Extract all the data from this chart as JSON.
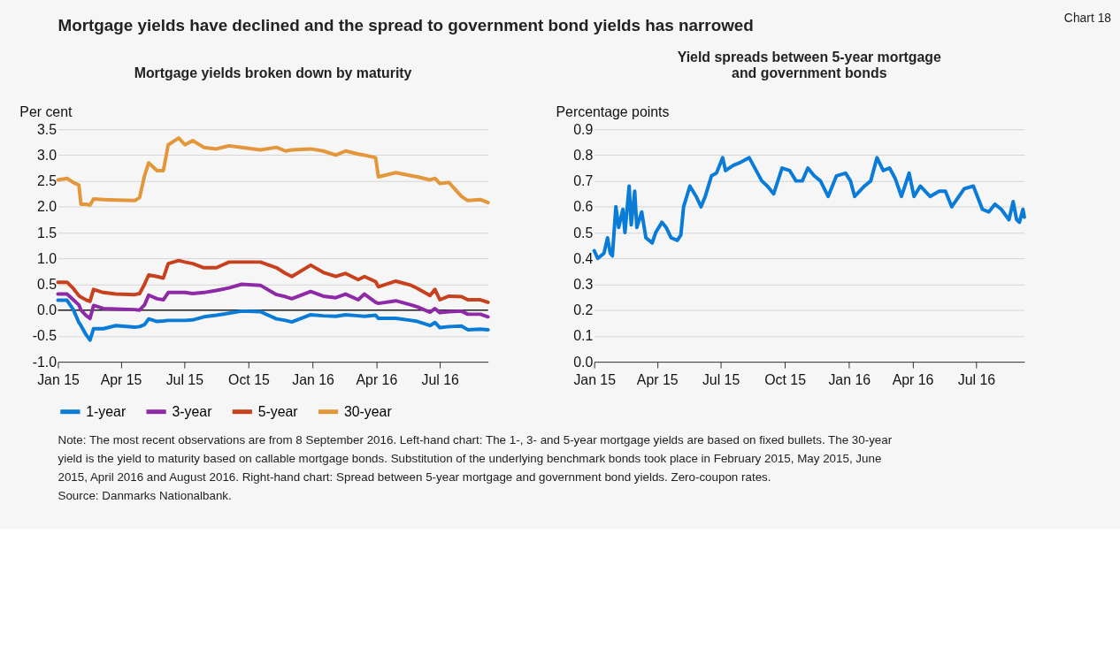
{
  "chart_data": [
    {
      "type": "line",
      "title": "Mortgage yields broken down by maturity",
      "ylabel": "Per cent",
      "annotations": [
        "Mortgage yields have declined and the spread to government bond yields has narrowed",
        "Chart 18",
        "Note: The most recent observations are from 8 September 2016. Left-hand chart: The 1-, 3- and 5-year mortgage yields are based on fixed bullets. The 30-year yield is the yield to maturity based on callable mortgage bonds. Substitution of the underlying benchmark bonds took place in February 2015, May 2015, June 2015, April 2016 and August 2016. Right-hand chart: Spread between 5-year mortgage and government bond yields. Zero-coupon rates.",
        "Source: Danmarks Nationalbank."
      ],
      "x": [
        "2015-01-01",
        "2015-01-14",
        "2015-01-23",
        "2015-01-31",
        "2015-02-03",
        "2015-02-10",
        "2015-02-16",
        "2015-02-21",
        "2015-03-07",
        "2015-03-25",
        "2015-04-21",
        "2015-04-28",
        "2015-05-05",
        "2015-05-11",
        "2015-05-23",
        "2015-06-01",
        "2015-06-08",
        "2015-06-23",
        "2015-07-02",
        "2015-07-13",
        "2015-07-29",
        "2015-08-16",
        "2015-09-03",
        "2015-09-21",
        "2015-10-18",
        "2015-11-10",
        "2015-11-23",
        "2015-12-02",
        "2015-12-29",
        "2016-01-16",
        "2016-02-03",
        "2016-02-17",
        "2016-03-06",
        "2016-03-15",
        "2016-03-31",
        "2016-04-04",
        "2016-04-29",
        "2016-05-21",
        "2016-05-30",
        "2016-06-17",
        "2016-06-24",
        "2016-07-01",
        "2016-07-14",
        "2016-08-01",
        "2016-08-10",
        "2016-08-28",
        "2016-09-08"
      ],
      "series": [
        {
          "name": "1-year",
          "color": "#0a7bd6",
          "values": [
            0.19,
            0.19,
            0.01,
            -0.24,
            -0.3,
            -0.47,
            -0.58,
            -0.36,
            -0.36,
            -0.3,
            -0.33,
            -0.32,
            -0.28,
            -0.17,
            -0.22,
            -0.21,
            -0.2,
            -0.2,
            -0.2,
            -0.19,
            -0.13,
            -0.1,
            -0.06,
            -0.02,
            -0.03,
            -0.17,
            -0.2,
            -0.23,
            -0.09,
            -0.11,
            -0.12,
            -0.09,
            -0.11,
            -0.12,
            -0.1,
            -0.16,
            -0.16,
            -0.2,
            -0.22,
            -0.3,
            -0.24,
            -0.34,
            -0.32,
            -0.31,
            -0.38,
            -0.37,
            -0.38
          ]
        },
        {
          "name": "3-year",
          "color": "#8e2aa6",
          "values": [
            0.31,
            0.31,
            0.2,
            0.1,
            0.0,
            -0.1,
            -0.16,
            0.09,
            0.03,
            0.02,
            0.01,
            0.0,
            0.1,
            0.29,
            0.22,
            0.2,
            0.34,
            0.34,
            0.34,
            0.32,
            0.34,
            0.38,
            0.43,
            0.5,
            0.48,
            0.3,
            0.26,
            0.22,
            0.36,
            0.27,
            0.24,
            0.31,
            0.2,
            0.31,
            0.15,
            0.13,
            0.18,
            0.1,
            0.06,
            -0.04,
            0.03,
            -0.05,
            -0.03,
            -0.02,
            -0.08,
            -0.08,
            -0.13
          ]
        },
        {
          "name": "5-year",
          "color": "#c8411e",
          "values": [
            0.54,
            0.54,
            0.42,
            0.28,
            0.25,
            0.2,
            0.17,
            0.4,
            0.34,
            0.31,
            0.3,
            0.32,
            0.5,
            0.68,
            0.65,
            0.62,
            0.9,
            0.96,
            0.93,
            0.9,
            0.82,
            0.82,
            0.93,
            0.93,
            0.93,
            0.82,
            0.71,
            0.65,
            0.87,
            0.73,
            0.65,
            0.71,
            0.59,
            0.65,
            0.55,
            0.45,
            0.56,
            0.48,
            0.42,
            0.28,
            0.4,
            0.2,
            0.27,
            0.26,
            0.2,
            0.2,
            0.15
          ]
        },
        {
          "name": "30-year",
          "color": "#e3963a",
          "values": [
            2.52,
            2.55,
            2.47,
            2.42,
            2.05,
            2.05,
            2.03,
            2.15,
            2.14,
            2.13,
            2.12,
            2.18,
            2.6,
            2.85,
            2.7,
            2.7,
            3.2,
            3.33,
            3.2,
            3.28,
            3.15,
            3.12,
            3.18,
            3.15,
            3.1,
            3.15,
            3.08,
            3.1,
            3.12,
            3.08,
            3.0,
            3.08,
            3.02,
            3.0,
            2.95,
            2.58,
            2.66,
            2.6,
            2.58,
            2.52,
            2.55,
            2.45,
            2.47,
            2.2,
            2.12,
            2.14,
            2.08
          ]
        }
      ],
      "xlim": [
        "2015-01-01",
        "2016-09-08"
      ],
      "xticks": [
        {
          "value": "2015-01-01",
          "label": "Jan 15"
        },
        {
          "value": "2015-04-01",
          "label": "Apr 15"
        },
        {
          "value": "2015-07-01",
          "label": "Jul 15"
        },
        {
          "value": "2015-10-01",
          "label": "Oct 15"
        },
        {
          "value": "2016-01-01",
          "label": "Jan 16"
        },
        {
          "value": "2016-04-01",
          "label": "Apr 16"
        },
        {
          "value": "2016-07-01",
          "label": "Jul 16"
        }
      ],
      "ylim": [
        -1.0,
        3.5
      ],
      "yticks": [
        {
          "value": -1,
          "label": "-1.0"
        },
        {
          "value": -0.5,
          "label": "-0.5"
        },
        {
          "value": 0,
          "label": "0.0"
        },
        {
          "value": 0.5,
          "label": "0.5"
        },
        {
          "value": 1,
          "label": "1.0"
        },
        {
          "value": 1.5,
          "label": "1.5"
        },
        {
          "value": 2,
          "label": "2.0"
        },
        {
          "value": 2.5,
          "label": "2.5"
        },
        {
          "value": 3,
          "label": "3.0"
        },
        {
          "value": 3.5,
          "label": "3.5"
        }
      ],
      "grid": "y",
      "legend": "bottom",
      "ref_lines": [
        {
          "axis": "y",
          "value": 0,
          "color": "#222222"
        }
      ]
    },
    {
      "type": "line",
      "title": "Yield spreads between 5-year mortgage and government bonds",
      "ylabel": "Percentage points",
      "series": [
        {
          "color": "#0a7bd6",
          "x": [
            "2015-01-01",
            "2015-01-06",
            "2015-01-15",
            "2015-01-20",
            "2015-01-24",
            "2015-01-27",
            "2015-02-01",
            "2015-02-05",
            "2015-02-11",
            "2015-02-14",
            "2015-02-20",
            "2015-02-23",
            "2015-02-28",
            "2015-03-03",
            "2015-03-10",
            "2015-03-16",
            "2015-03-25",
            "2015-03-30",
            "2015-04-08",
            "2015-04-14",
            "2015-04-21",
            "2015-04-30",
            "2015-05-05",
            "2015-05-09",
            "2015-05-18",
            "2015-05-27",
            "2015-06-03",
            "2015-06-09",
            "2015-06-18",
            "2015-06-25",
            "2015-07-04",
            "2015-07-08",
            "2015-07-19",
            "2015-07-28",
            "2015-08-11",
            "2015-08-17",
            "2015-08-29",
            "2015-09-06",
            "2015-09-15",
            "2015-09-27",
            "2015-10-08",
            "2015-10-17",
            "2015-10-26",
            "2015-11-03",
            "2015-11-12",
            "2015-11-21",
            "2015-12-02",
            "2015-12-14",
            "2015-12-27",
            "2016-01-03",
            "2016-01-09",
            "2016-01-23",
            "2016-02-01",
            "2016-02-10",
            "2016-02-19",
            "2016-02-28",
            "2016-03-07",
            "2016-03-16",
            "2016-03-27",
            "2016-04-03",
            "2016-04-12",
            "2016-04-26",
            "2016-05-09",
            "2016-05-18",
            "2016-05-27",
            "2016-06-14",
            "2016-06-27",
            "2016-07-10",
            "2016-07-19",
            "2016-07-28",
            "2016-08-06",
            "2016-08-17",
            "2016-08-23",
            "2016-08-28",
            "2016-09-01",
            "2016-09-06",
            "2016-09-08"
          ],
          "values": [
            0.43,
            0.4,
            0.42,
            0.48,
            0.42,
            0.41,
            0.6,
            0.52,
            0.59,
            0.5,
            0.68,
            0.53,
            0.66,
            0.52,
            0.58,
            0.48,
            0.46,
            0.5,
            0.54,
            0.52,
            0.48,
            0.47,
            0.49,
            0.6,
            0.68,
            0.64,
            0.6,
            0.64,
            0.72,
            0.73,
            0.79,
            0.74,
            0.76,
            0.77,
            0.79,
            0.76,
            0.7,
            0.68,
            0.65,
            0.75,
            0.74,
            0.7,
            0.7,
            0.75,
            0.72,
            0.7,
            0.64,
            0.72,
            0.73,
            0.7,
            0.64,
            0.68,
            0.7,
            0.79,
            0.74,
            0.75,
            0.71,
            0.64,
            0.73,
            0.64,
            0.68,
            0.64,
            0.66,
            0.66,
            0.6,
            0.67,
            0.68,
            0.59,
            0.58,
            0.61,
            0.59,
            0.55,
            0.62,
            0.55,
            0.54,
            0.59,
            0.56
          ]
        }
      ],
      "xlim": [
        "2015-01-01",
        "2016-09-08"
      ],
      "xticks": [
        {
          "value": "2015-01-01",
          "label": "Jan 15"
        },
        {
          "value": "2015-04-01",
          "label": "Apr 15"
        },
        {
          "value": "2015-07-01",
          "label": "Jul 15"
        },
        {
          "value": "2015-10-01",
          "label": "Oct 15"
        },
        {
          "value": "2016-01-01",
          "label": "Jan 16"
        },
        {
          "value": "2016-04-01",
          "label": "Apr 16"
        },
        {
          "value": "2016-07-01",
          "label": "Jul 16"
        }
      ],
      "ylim": [
        0.0,
        0.9
      ],
      "yticks": [
        {
          "value": 0,
          "label": "0.0"
        },
        {
          "value": 0.1,
          "label": "0.1"
        },
        {
          "value": 0.2,
          "label": "0.2"
        },
        {
          "value": 0.3,
          "label": "0.3"
        },
        {
          "value": 0.4,
          "label": "0.4"
        },
        {
          "value": 0.5,
          "label": "0.5"
        },
        {
          "value": 0.6,
          "label": "0.6"
        },
        {
          "value": 0.7,
          "label": "0.7"
        },
        {
          "value": 0.8,
          "label": "0.8"
        },
        {
          "value": 0.9,
          "label": "0.9"
        }
      ],
      "grid": "y"
    }
  ]
}
